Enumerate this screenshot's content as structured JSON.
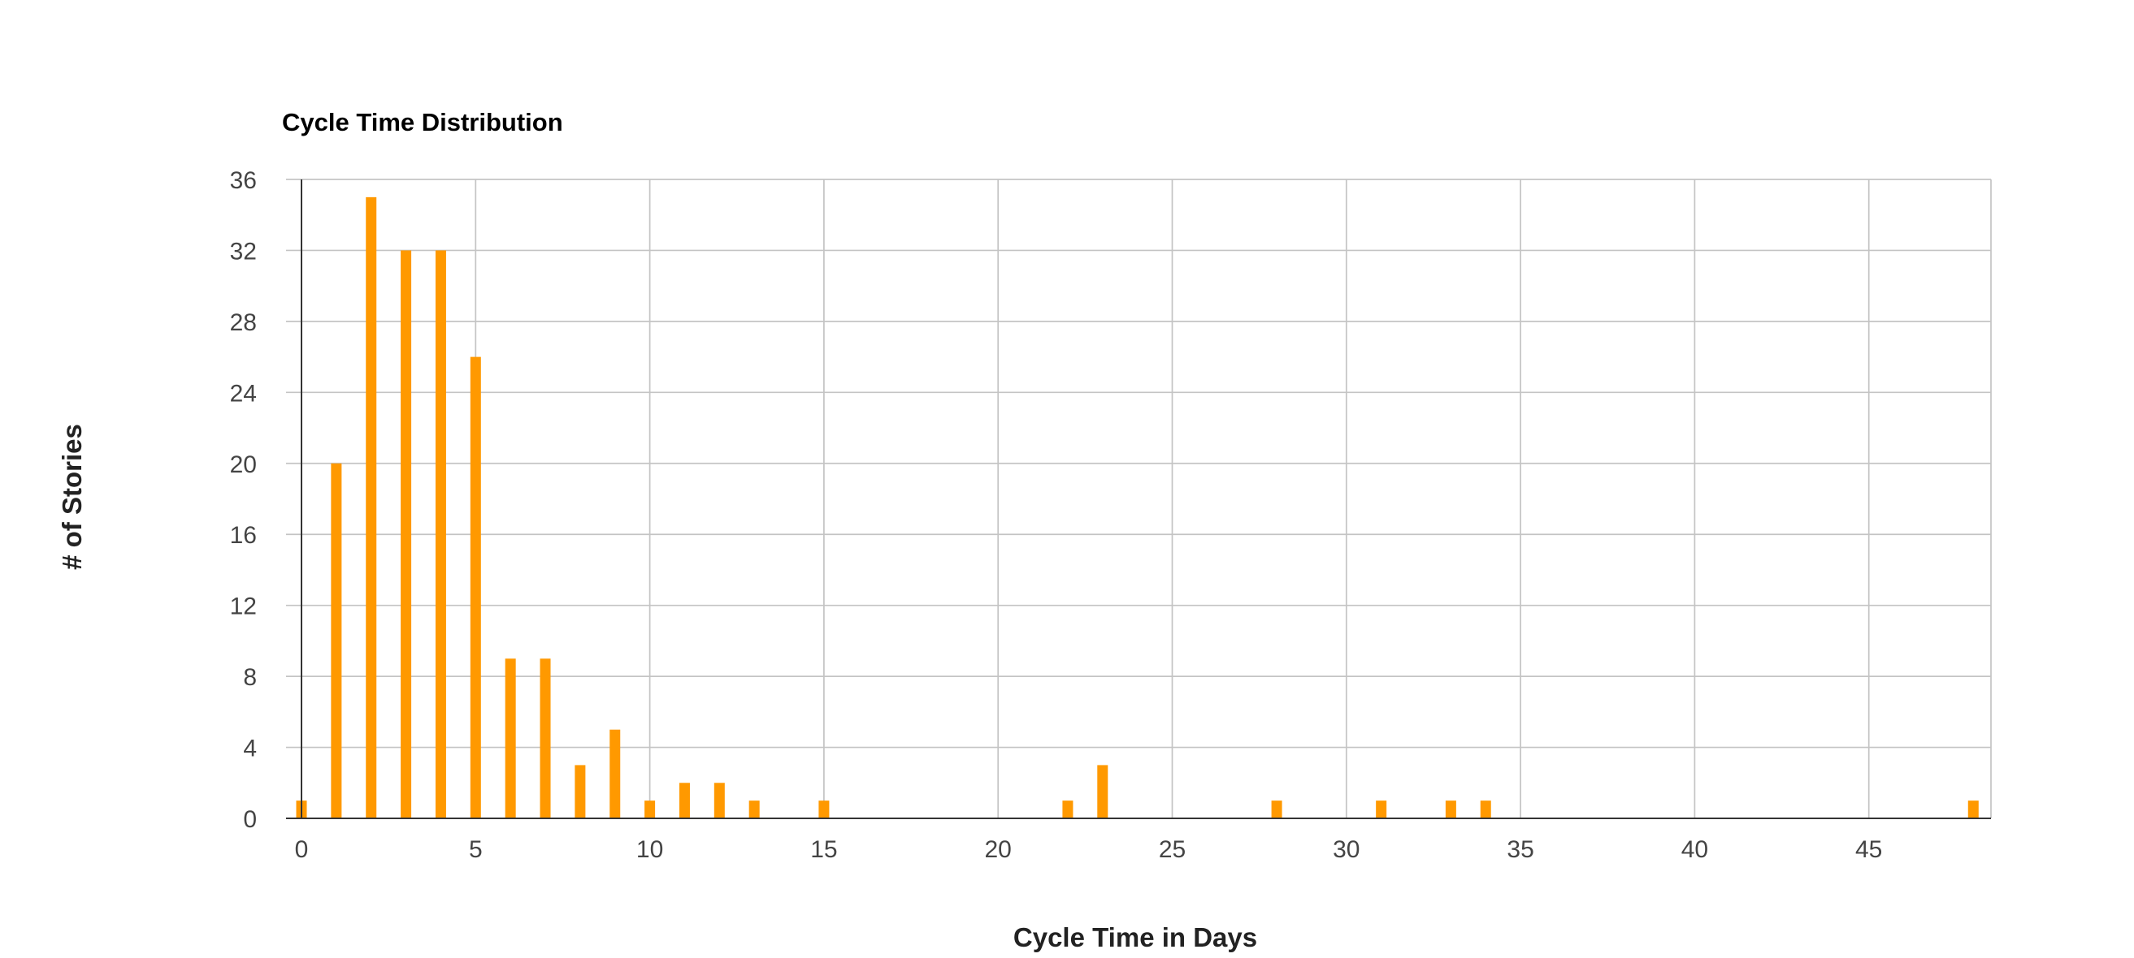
{
  "chart_data": {
    "type": "bar",
    "title": "Cycle Time Distribution",
    "xlabel": "Cycle Time in Days",
    "ylabel": "# of Stories",
    "x": [
      0,
      1,
      2,
      3,
      4,
      5,
      6,
      7,
      8,
      9,
      10,
      11,
      12,
      13,
      15,
      22,
      23,
      28,
      31,
      33,
      34,
      48
    ],
    "values": [
      1,
      20,
      35,
      32,
      32,
      26,
      9,
      9,
      3,
      5,
      1,
      2,
      2,
      1,
      1,
      1,
      3,
      1,
      1,
      1,
      1,
      1
    ],
    "xlim": [
      -0.3,
      48.5
    ],
    "ylim": [
      0,
      36
    ],
    "x_ticks": [
      0,
      5,
      10,
      15,
      20,
      25,
      30,
      35,
      40,
      45
    ],
    "y_ticks": [
      0,
      4,
      8,
      12,
      16,
      20,
      24,
      28,
      32,
      36
    ],
    "grid": true,
    "legend": "none",
    "bar_color": "#ff9900"
  }
}
